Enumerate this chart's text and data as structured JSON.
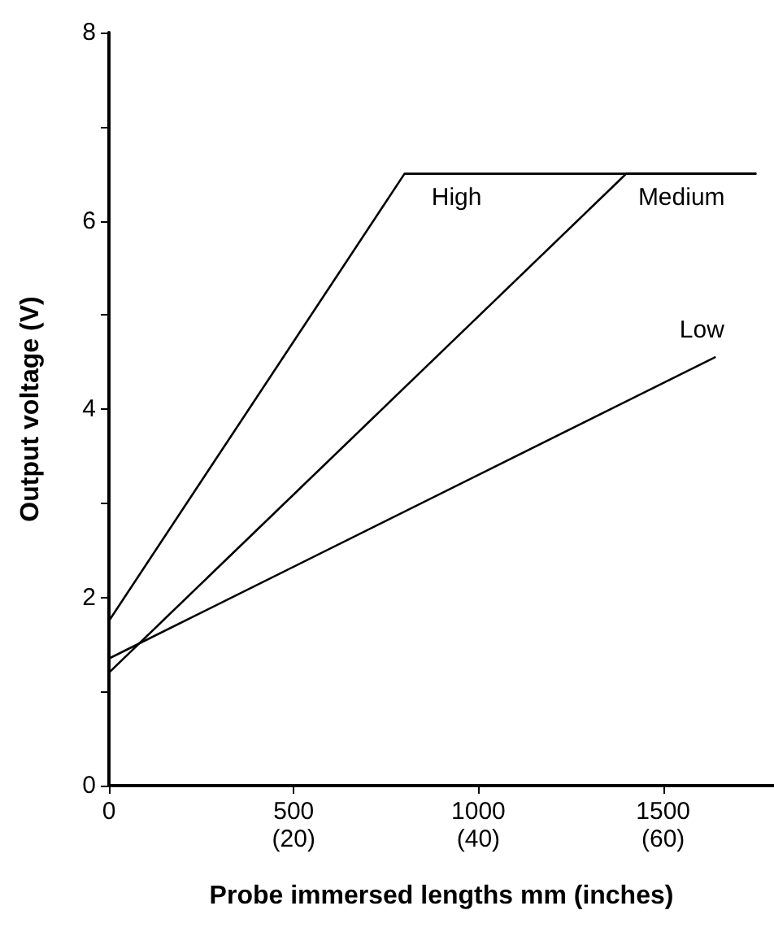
{
  "chart_data": {
    "type": "line",
    "xlabel": "Probe immersed lengths mm (inches)",
    "ylabel": "Output voltage (V)",
    "series": [
      {
        "name": "High",
        "color": "#000000",
        "x": [
          0,
          800,
          1750
        ],
        "values": [
          1.75,
          6.5,
          6.5
        ]
      },
      {
        "name": "Medium",
        "color": "#000000",
        "x": [
          0,
          1400,
          1750
        ],
        "values": [
          1.2,
          6.5,
          6.5
        ]
      },
      {
        "name": "Low",
        "color": "#000000",
        "x": [
          0,
          1640
        ],
        "values": [
          1.35,
          4.55
        ]
      }
    ],
    "xlim": [
      0,
      1800
    ],
    "xticks": [
      0,
      500,
      1000,
      1500
    ],
    "x2lim": [
      0,
      72
    ],
    "x2ticks": [
      {
        "value": 20,
        "label": "(20)"
      },
      {
        "value": 40,
        "label": "(40)"
      },
      {
        "value": 60,
        "label": "(60)"
      }
    ],
    "ylim": [
      0,
      8
    ],
    "yticks": [
      0,
      {
        "value": 1,
        "label": null
      },
      2,
      {
        "value": 3,
        "label": null
      },
      4,
      {
        "value": 5,
        "label": null
      },
      6,
      {
        "value": 7,
        "label": null
      },
      8
    ],
    "grid": false,
    "legend": false,
    "marker": "none",
    "line_style": "solid"
  }
}
